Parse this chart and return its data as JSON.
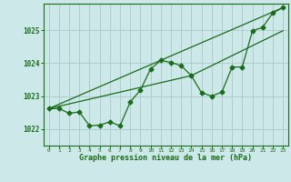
{
  "bg_color": "#cce8e8",
  "grid_color": "#b0cccc",
  "line_color": "#1a6b1a",
  "marker": "D",
  "marker_size": 2.5,
  "xlabel": "Graphe pression niveau de la mer (hPa)",
  "xlim": [
    -0.5,
    23.5
  ],
  "ylim": [
    1021.5,
    1025.8
  ],
  "yticks": [
    1022,
    1023,
    1024,
    1025
  ],
  "xticks": [
    0,
    1,
    2,
    3,
    4,
    5,
    6,
    7,
    8,
    9,
    10,
    11,
    12,
    13,
    14,
    15,
    16,
    17,
    18,
    19,
    20,
    21,
    22,
    23
  ],
  "series1_x": [
    0,
    1,
    2,
    3,
    4,
    5,
    6,
    7,
    8,
    9,
    10,
    11,
    12,
    13,
    14,
    15,
    16,
    17,
    18,
    19,
    20,
    21,
    22,
    23
  ],
  "series1_y": [
    1022.62,
    1022.62,
    1022.48,
    1022.52,
    1022.1,
    1022.12,
    1022.22,
    1022.1,
    1022.82,
    1023.18,
    1023.82,
    1024.08,
    1024.02,
    1023.92,
    1023.62,
    1023.1,
    1023.0,
    1023.12,
    1023.88,
    1023.88,
    1024.98,
    1025.08,
    1025.52,
    1025.68
  ],
  "series2_x": [
    0,
    23
  ],
  "series2_y": [
    1022.62,
    1025.68
  ],
  "series3_x": [
    0,
    14,
    23
  ],
  "series3_y": [
    1022.62,
    1023.62,
    1024.98
  ]
}
